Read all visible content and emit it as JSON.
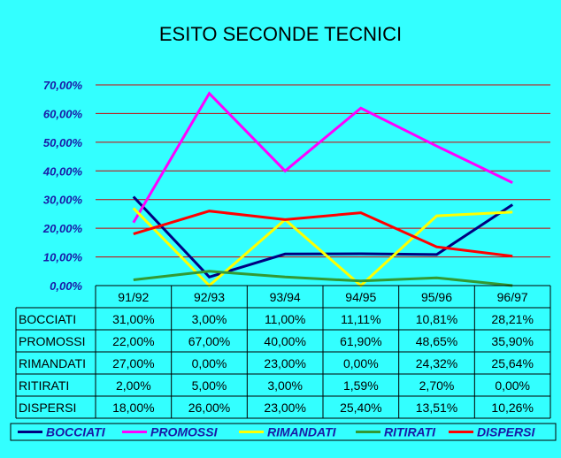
{
  "chart_data": {
    "type": "line",
    "title": "ESITO SECONDE TECNICI",
    "categories": [
      "91/92",
      "92/93",
      "93/94",
      "94/95",
      "95/96",
      "96/97"
    ],
    "ylim": [
      0,
      70
    ],
    "y_ticks": [
      "0,00%",
      "10,00%",
      "20,00%",
      "30,00%",
      "40,00%",
      "50,00%",
      "60,00%",
      "70,00%"
    ],
    "grid": true,
    "legend_position": "bottom",
    "series": [
      {
        "name": "BOCCIATI",
        "color": "#000080",
        "values": [
          31.0,
          3.0,
          11.0,
          11.11,
          10.81,
          28.21
        ],
        "labels": [
          "31,00%",
          "3,00%",
          "11,00%",
          "11,11%",
          "10,81%",
          "28,21%"
        ]
      },
      {
        "name": "PROMOSSI",
        "color": "#ff00ff",
        "values": [
          22.0,
          67.0,
          40.0,
          61.9,
          48.65,
          35.9
        ],
        "labels": [
          "22,00%",
          "67,00%",
          "40,00%",
          "61,90%",
          "48,65%",
          "35,90%"
        ]
      },
      {
        "name": "RIMANDATI",
        "color": "#ffff00",
        "values": [
          27.0,
          0.0,
          23.0,
          0.0,
          24.32,
          25.64
        ],
        "labels": [
          "27,00%",
          "0,00%",
          "23,00%",
          "0,00%",
          "24,32%",
          "25,64%"
        ]
      },
      {
        "name": "RITIRATI",
        "color": "#339933",
        "values": [
          2.0,
          5.0,
          3.0,
          1.59,
          2.7,
          0.0
        ],
        "labels": [
          "2,00%",
          "5,00%",
          "3,00%",
          "1,59%",
          "2,70%",
          "0,00%"
        ]
      },
      {
        "name": "DISPERSI",
        "color": "#ff0000",
        "values": [
          18.0,
          26.0,
          23.0,
          25.4,
          13.51,
          10.26
        ],
        "labels": [
          "18,00%",
          "26,00%",
          "23,00%",
          "25,40%",
          "13,51%",
          "10,26%"
        ]
      }
    ]
  }
}
